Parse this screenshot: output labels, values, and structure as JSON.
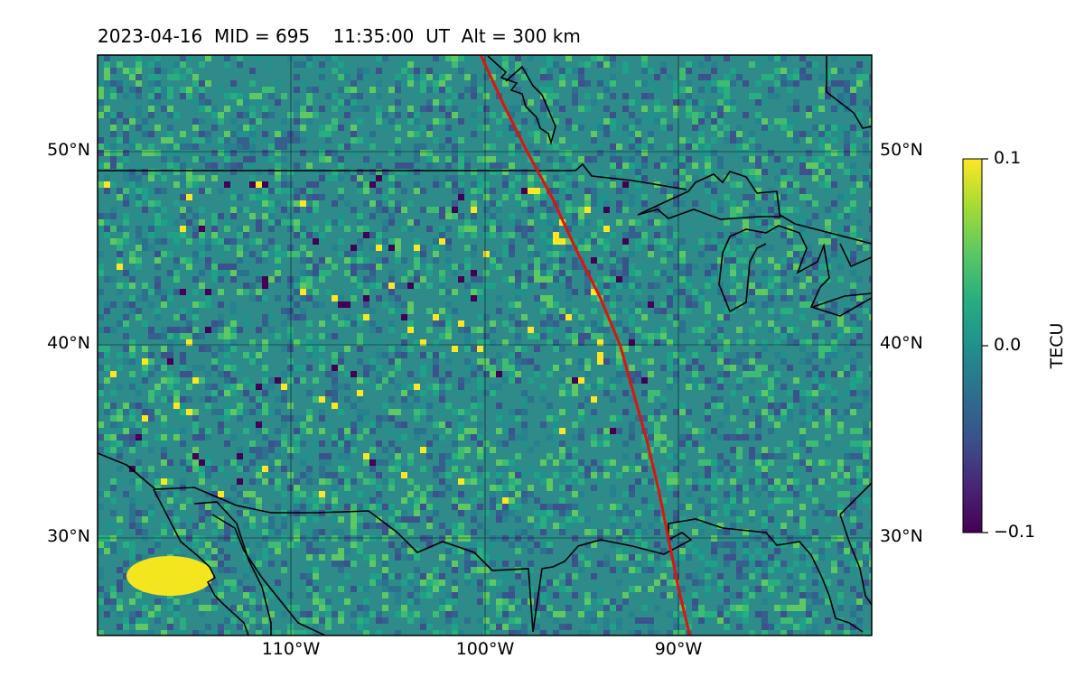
{
  "title": "2023-04-16  MID = 695    11:35:00  UT  Alt = 300 km",
  "axes": {
    "lat_ticks": [
      "50°N",
      "40°N",
      "30°N"
    ],
    "lon_ticks": [
      "110°W",
      "100°W",
      "90°W"
    ],
    "lon_range": [
      -120,
      -80
    ],
    "lat_range": [
      25,
      55
    ]
  },
  "colorbar": {
    "label": "TECU",
    "max_label": "0.1",
    "mid_label": "0.0",
    "min_label": "−0.1",
    "range": [
      -0.1,
      0.1
    ],
    "colormap": "viridis"
  },
  "colors": {
    "track": "#e0130f",
    "coastline": "#000000",
    "background_field": "#2a8c8a"
  },
  "track": {
    "label": "",
    "points": [
      [
        -100.2,
        55
      ],
      [
        -99.0,
        52.4
      ],
      [
        -97.8,
        50.0
      ],
      [
        -96.5,
        47.6
      ],
      [
        -95.3,
        45.0
      ],
      [
        -94.0,
        42.4
      ],
      [
        -93.0,
        40.0
      ],
      [
        -92.3,
        37.5
      ],
      [
        -91.6,
        35.0
      ],
      [
        -91.0,
        32.5
      ],
      [
        -90.5,
        30.0
      ],
      [
        -90.0,
        27.5
      ],
      [
        -89.4,
        25
      ]
    ]
  }
}
